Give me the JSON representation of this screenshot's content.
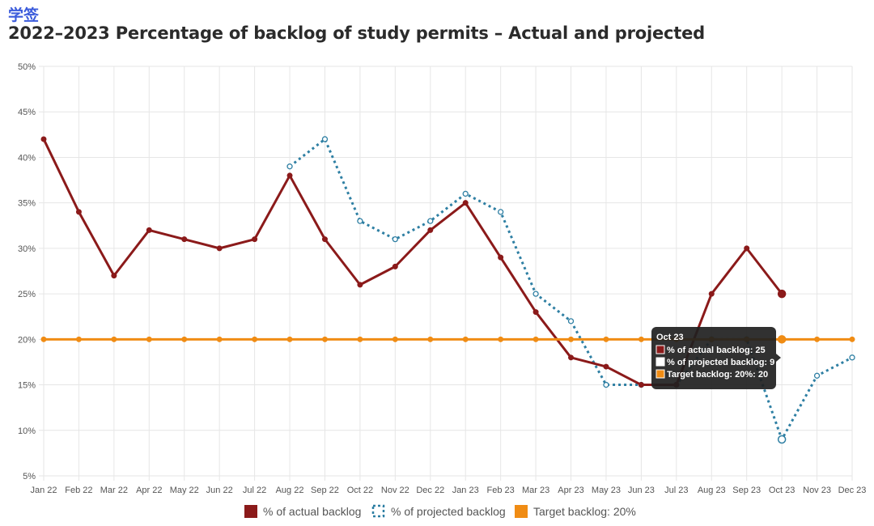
{
  "header": {
    "tag": "学签",
    "title": "2022–2023 Percentage of backlog of study permits – Actual and projected"
  },
  "colors": {
    "actual": "#8b1a1a",
    "projected": "#2e7fa3",
    "target": "#f08c14",
    "grid": "#e6e6e6",
    "tooltip_bg": "#1f1f1f"
  },
  "chart_data": {
    "type": "line",
    "title": "2022–2023 Percentage of backlog of study permits – Actual and projected",
    "categories": [
      "Jan 22",
      "Feb 22",
      "Mar 22",
      "Apr 22",
      "May 22",
      "Jun 22",
      "Jul 22",
      "Aug 22",
      "Sep 22",
      "Oct 22",
      "Nov 22",
      "Dec 22",
      "Jan 23",
      "Feb 23",
      "Mar 23",
      "Apr 23",
      "May 23",
      "Jun 23",
      "Jul 23",
      "Aug 23",
      "Sep 23",
      "Oct 23",
      "Nov 23",
      "Dec 23"
    ],
    "ylim": [
      5,
      50
    ],
    "yticks": [
      "5%",
      "10%",
      "15%",
      "20%",
      "25%",
      "30%",
      "35%",
      "40%",
      "45%",
      "50%"
    ],
    "ytick_values": [
      5,
      10,
      15,
      20,
      25,
      30,
      35,
      40,
      45,
      50
    ],
    "grid": true,
    "legend_position": "bottom",
    "series": [
      {
        "name": "% of actual backlog",
        "style": "solid",
        "values": [
          42,
          34,
          27,
          32,
          31,
          30,
          31,
          38,
          31,
          26,
          28,
          32,
          35,
          29,
          23,
          18,
          17,
          15,
          15,
          25,
          30,
          25,
          null,
          null
        ]
      },
      {
        "name": "% of projected backlog",
        "style": "dotted",
        "values": [
          null,
          null,
          null,
          null,
          null,
          null,
          null,
          39,
          42,
          33,
          31,
          33,
          36,
          34,
          25,
          22,
          15,
          15,
          15,
          20,
          20,
          9,
          16,
          18
        ]
      },
      {
        "name": "Target backlog: 20%",
        "style": "solid",
        "values": [
          20,
          20,
          20,
          20,
          20,
          20,
          20,
          20,
          20,
          20,
          20,
          20,
          20,
          20,
          20,
          20,
          20,
          20,
          20,
          20,
          20,
          20,
          20,
          20
        ]
      }
    ],
    "tooltip": {
      "category": "Oct 23",
      "rows": [
        "% of actual backlog: 25",
        "% of projected backlog: 9",
        "Target backlog: 20%: 20"
      ]
    }
  }
}
